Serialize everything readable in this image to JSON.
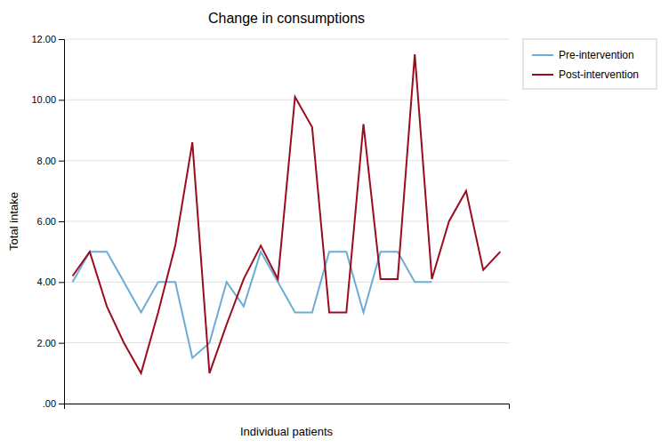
{
  "chart_data": {
    "type": "line",
    "title": "Change in consumptions",
    "x_label": "Individual patients",
    "y_label": "Total intake",
    "categories": [
      null,
      null,
      null,
      null,
      null,
      null,
      null,
      null,
      null,
      null,
      null,
      null,
      null,
      null,
      null,
      null,
      null,
      null,
      null,
      null,
      null,
      null,
      null,
      null,
      null,
      null
    ],
    "series": [
      {
        "name": "Pre-intervention",
        "color": "#6aadd5",
        "values": [
          4.0,
          5.0,
          5.0,
          4.0,
          3.0,
          4.0,
          4.0,
          1.5,
          2.0,
          4.0,
          3.2,
          5.0,
          4.0,
          3.0,
          3.0,
          5.0,
          5.0,
          3.0,
          5.0,
          5.0,
          4.0,
          4.0,
          null,
          null,
          null,
          null
        ]
      },
      {
        "name": "Post-intervention",
        "color": "#9b0d1e",
        "values": [
          4.2,
          5.0,
          3.2,
          2.0,
          1.0,
          3.0,
          5.2,
          8.6,
          1.0,
          2.6,
          4.1,
          5.2,
          4.1,
          10.1,
          9.1,
          3.0,
          3.0,
          9.2,
          4.1,
          4.1,
          11.5,
          4.1,
          6.0,
          7.0,
          4.4,
          5.0
        ]
      }
    ],
    "ylim": [
      0.0,
      12.0
    ],
    "yticks": [
      {
        "value": 0.0,
        "label": ".00"
      },
      {
        "value": 2.0,
        "label": "2.00"
      },
      {
        "value": 4.0,
        "label": "4.00"
      },
      {
        "value": 6.0,
        "label": "6.00"
      },
      {
        "value": 8.0,
        "label": "8.00"
      },
      {
        "value": 10.0,
        "label": "10.00"
      },
      {
        "value": 12.0,
        "label": "12.00"
      }
    ],
    "grid": true,
    "legend": "upper right",
    "tick_labels": "y"
  }
}
